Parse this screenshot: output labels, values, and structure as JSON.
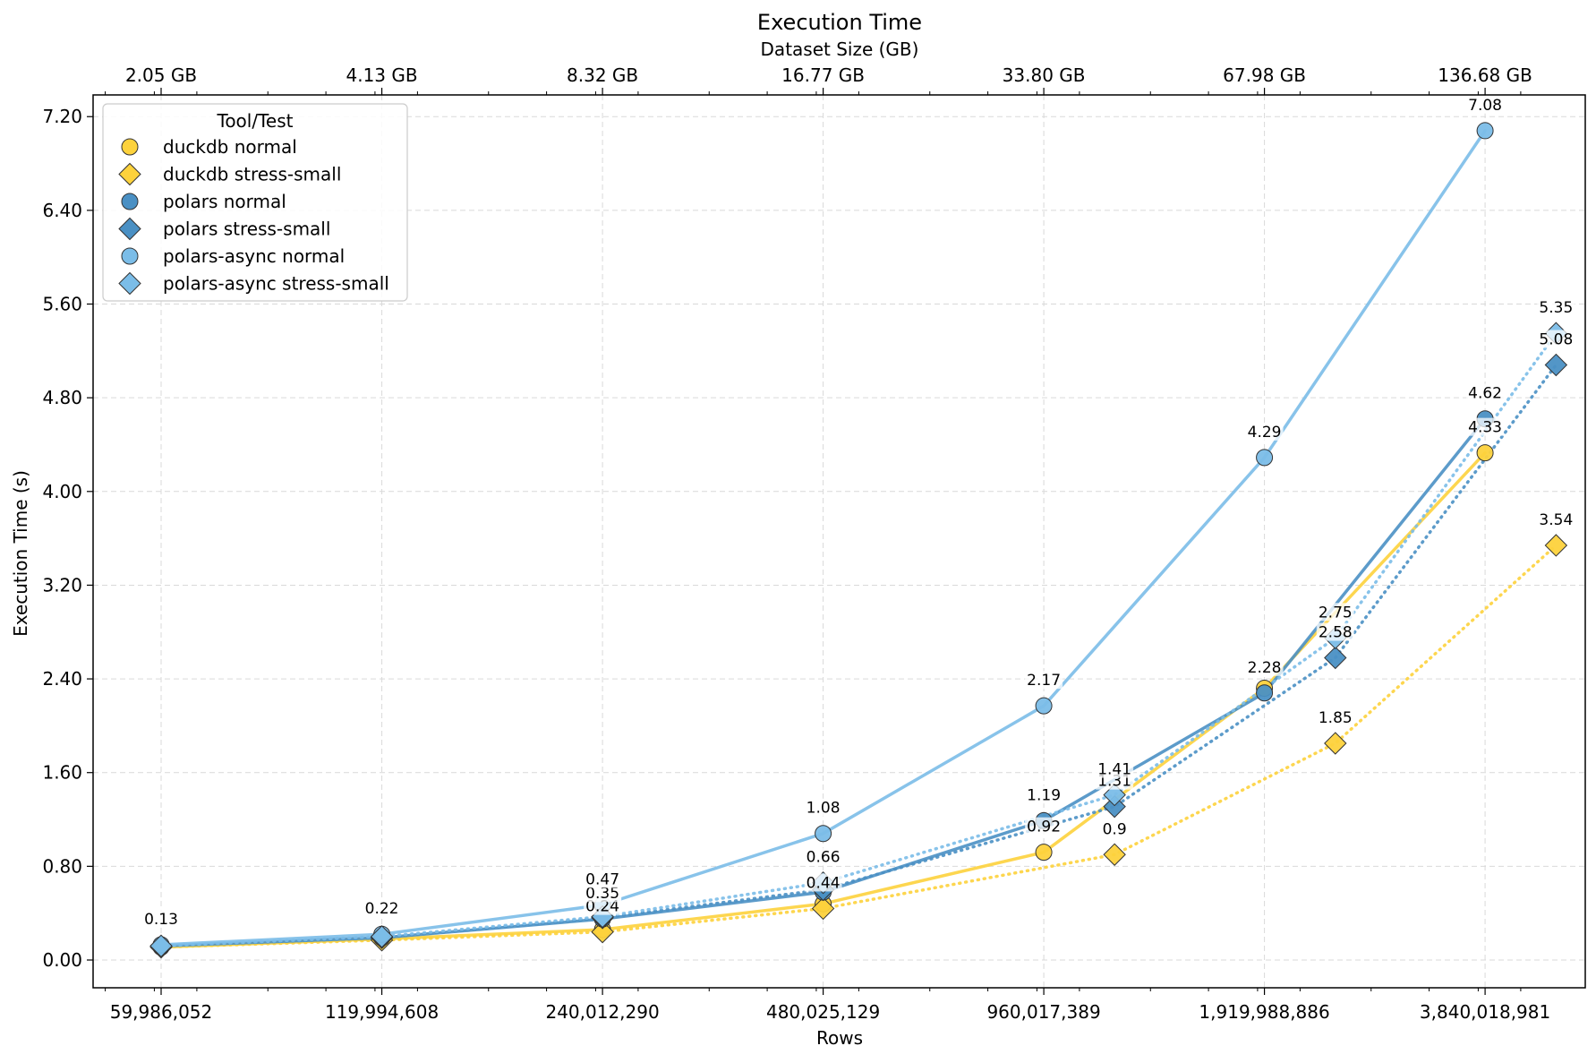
{
  "chart_data": {
    "type": "line",
    "title": "Execution Time",
    "xlabel": "Rows",
    "ylabel": "Execution Time (s)",
    "top_axis_label": "Dataset Size (GB)",
    "x_scale": "log2",
    "x_ticks": [
      59986052,
      119994608,
      240012290,
      480025129,
      960017389,
      1919988886,
      3840018981
    ],
    "x_tick_labels": [
      "59,986,052",
      "119,994,608",
      "240,012,290",
      "480,025,129",
      "960,017,389",
      "1,919,988,886",
      "3,840,018,981"
    ],
    "top_tick_labels": [
      "2.05 GB",
      "4.13 GB",
      "8.32 GB",
      "16.77 GB",
      "33.80 GB",
      "67.98 GB",
      "136.68 GB"
    ],
    "ylim": [
      -0.24,
      7.54
    ],
    "y_ticks": [
      0.0,
      0.8,
      1.6,
      2.4,
      3.2,
      4.0,
      4.8,
      5.6,
      6.4,
      7.2
    ],
    "y_tick_labels": [
      "0.00",
      "0.80",
      "1.60",
      "2.40",
      "3.20",
      "4.00",
      "4.80",
      "5.60",
      "6.40",
      "7.20"
    ],
    "grid": true,
    "legend_title": "Tool/Test",
    "legend_position": "top-left",
    "series": [
      {
        "name": "duckdb normal",
        "color": "#fdd23c",
        "marker": "circle",
        "linestyle": "solid",
        "x": [
          59986052,
          119994608,
          240012290,
          480025129,
          960017389,
          1919988886,
          3840018981
        ],
        "values": [
          0.11,
          0.18,
          0.26,
          0.48,
          0.92,
          2.32,
          4.33
        ],
        "labels": [
          null,
          null,
          null,
          null,
          "0.92",
          null,
          "4.33"
        ]
      },
      {
        "name": "duckdb stress-small",
        "color": "#fdd23c",
        "marker": "diamond",
        "linestyle": "dotted",
        "x": [
          59986052,
          119994608,
          240012290,
          480025129,
          1199000000,
          2399000000,
          4799000000
        ],
        "values": [
          0.11,
          0.17,
          0.24,
          0.44,
          0.9,
          1.85,
          3.54
        ],
        "labels": [
          null,
          null,
          "0.24",
          "0.44",
          "0.9",
          "1.85",
          "3.54"
        ]
      },
      {
        "name": "polars normal",
        "color": "#4a90c4",
        "marker": "circle",
        "linestyle": "solid",
        "x": [
          59986052,
          119994608,
          240012290,
          480025129,
          960017389,
          1919988886,
          3840018981
        ],
        "values": [
          0.12,
          0.19,
          0.35,
          0.58,
          1.19,
          2.28,
          4.62
        ],
        "labels": [
          null,
          null,
          "0.35",
          null,
          "1.19",
          "2.28",
          "4.62"
        ]
      },
      {
        "name": "polars stress-small",
        "color": "#4a90c4",
        "marker": "diamond",
        "linestyle": "dotted",
        "x": [
          59986052,
          119994608,
          240012290,
          480025129,
          1199000000,
          2399000000,
          4799000000
        ],
        "values": [
          0.12,
          0.19,
          0.36,
          0.6,
          1.31,
          2.58,
          5.08
        ],
        "labels": [
          null,
          null,
          null,
          null,
          "1.31",
          "2.58",
          "5.08"
        ]
      },
      {
        "name": "polars-async normal",
        "color": "#7bbde8",
        "marker": "circle",
        "linestyle": "solid",
        "x": [
          59986052,
          119994608,
          240012290,
          480025129,
          960017389,
          1919988886,
          3840018981
        ],
        "values": [
          0.13,
          0.22,
          0.47,
          1.08,
          2.17,
          4.29,
          7.08
        ],
        "labels": [
          "0.13",
          "0.22",
          "0.47",
          "1.08",
          "2.17",
          "4.29",
          "7.08"
        ]
      },
      {
        "name": "polars-async stress-small",
        "color": "#7bbde8",
        "marker": "diamond",
        "linestyle": "dotted",
        "x": [
          59986052,
          119994608,
          240012290,
          480025129,
          1199000000,
          2399000000,
          4799000000
        ],
        "values": [
          0.12,
          0.2,
          0.37,
          0.66,
          1.41,
          2.75,
          5.35
        ],
        "labels": [
          null,
          null,
          null,
          "0.66",
          "1.41",
          "2.75",
          "5.35"
        ]
      }
    ]
  }
}
